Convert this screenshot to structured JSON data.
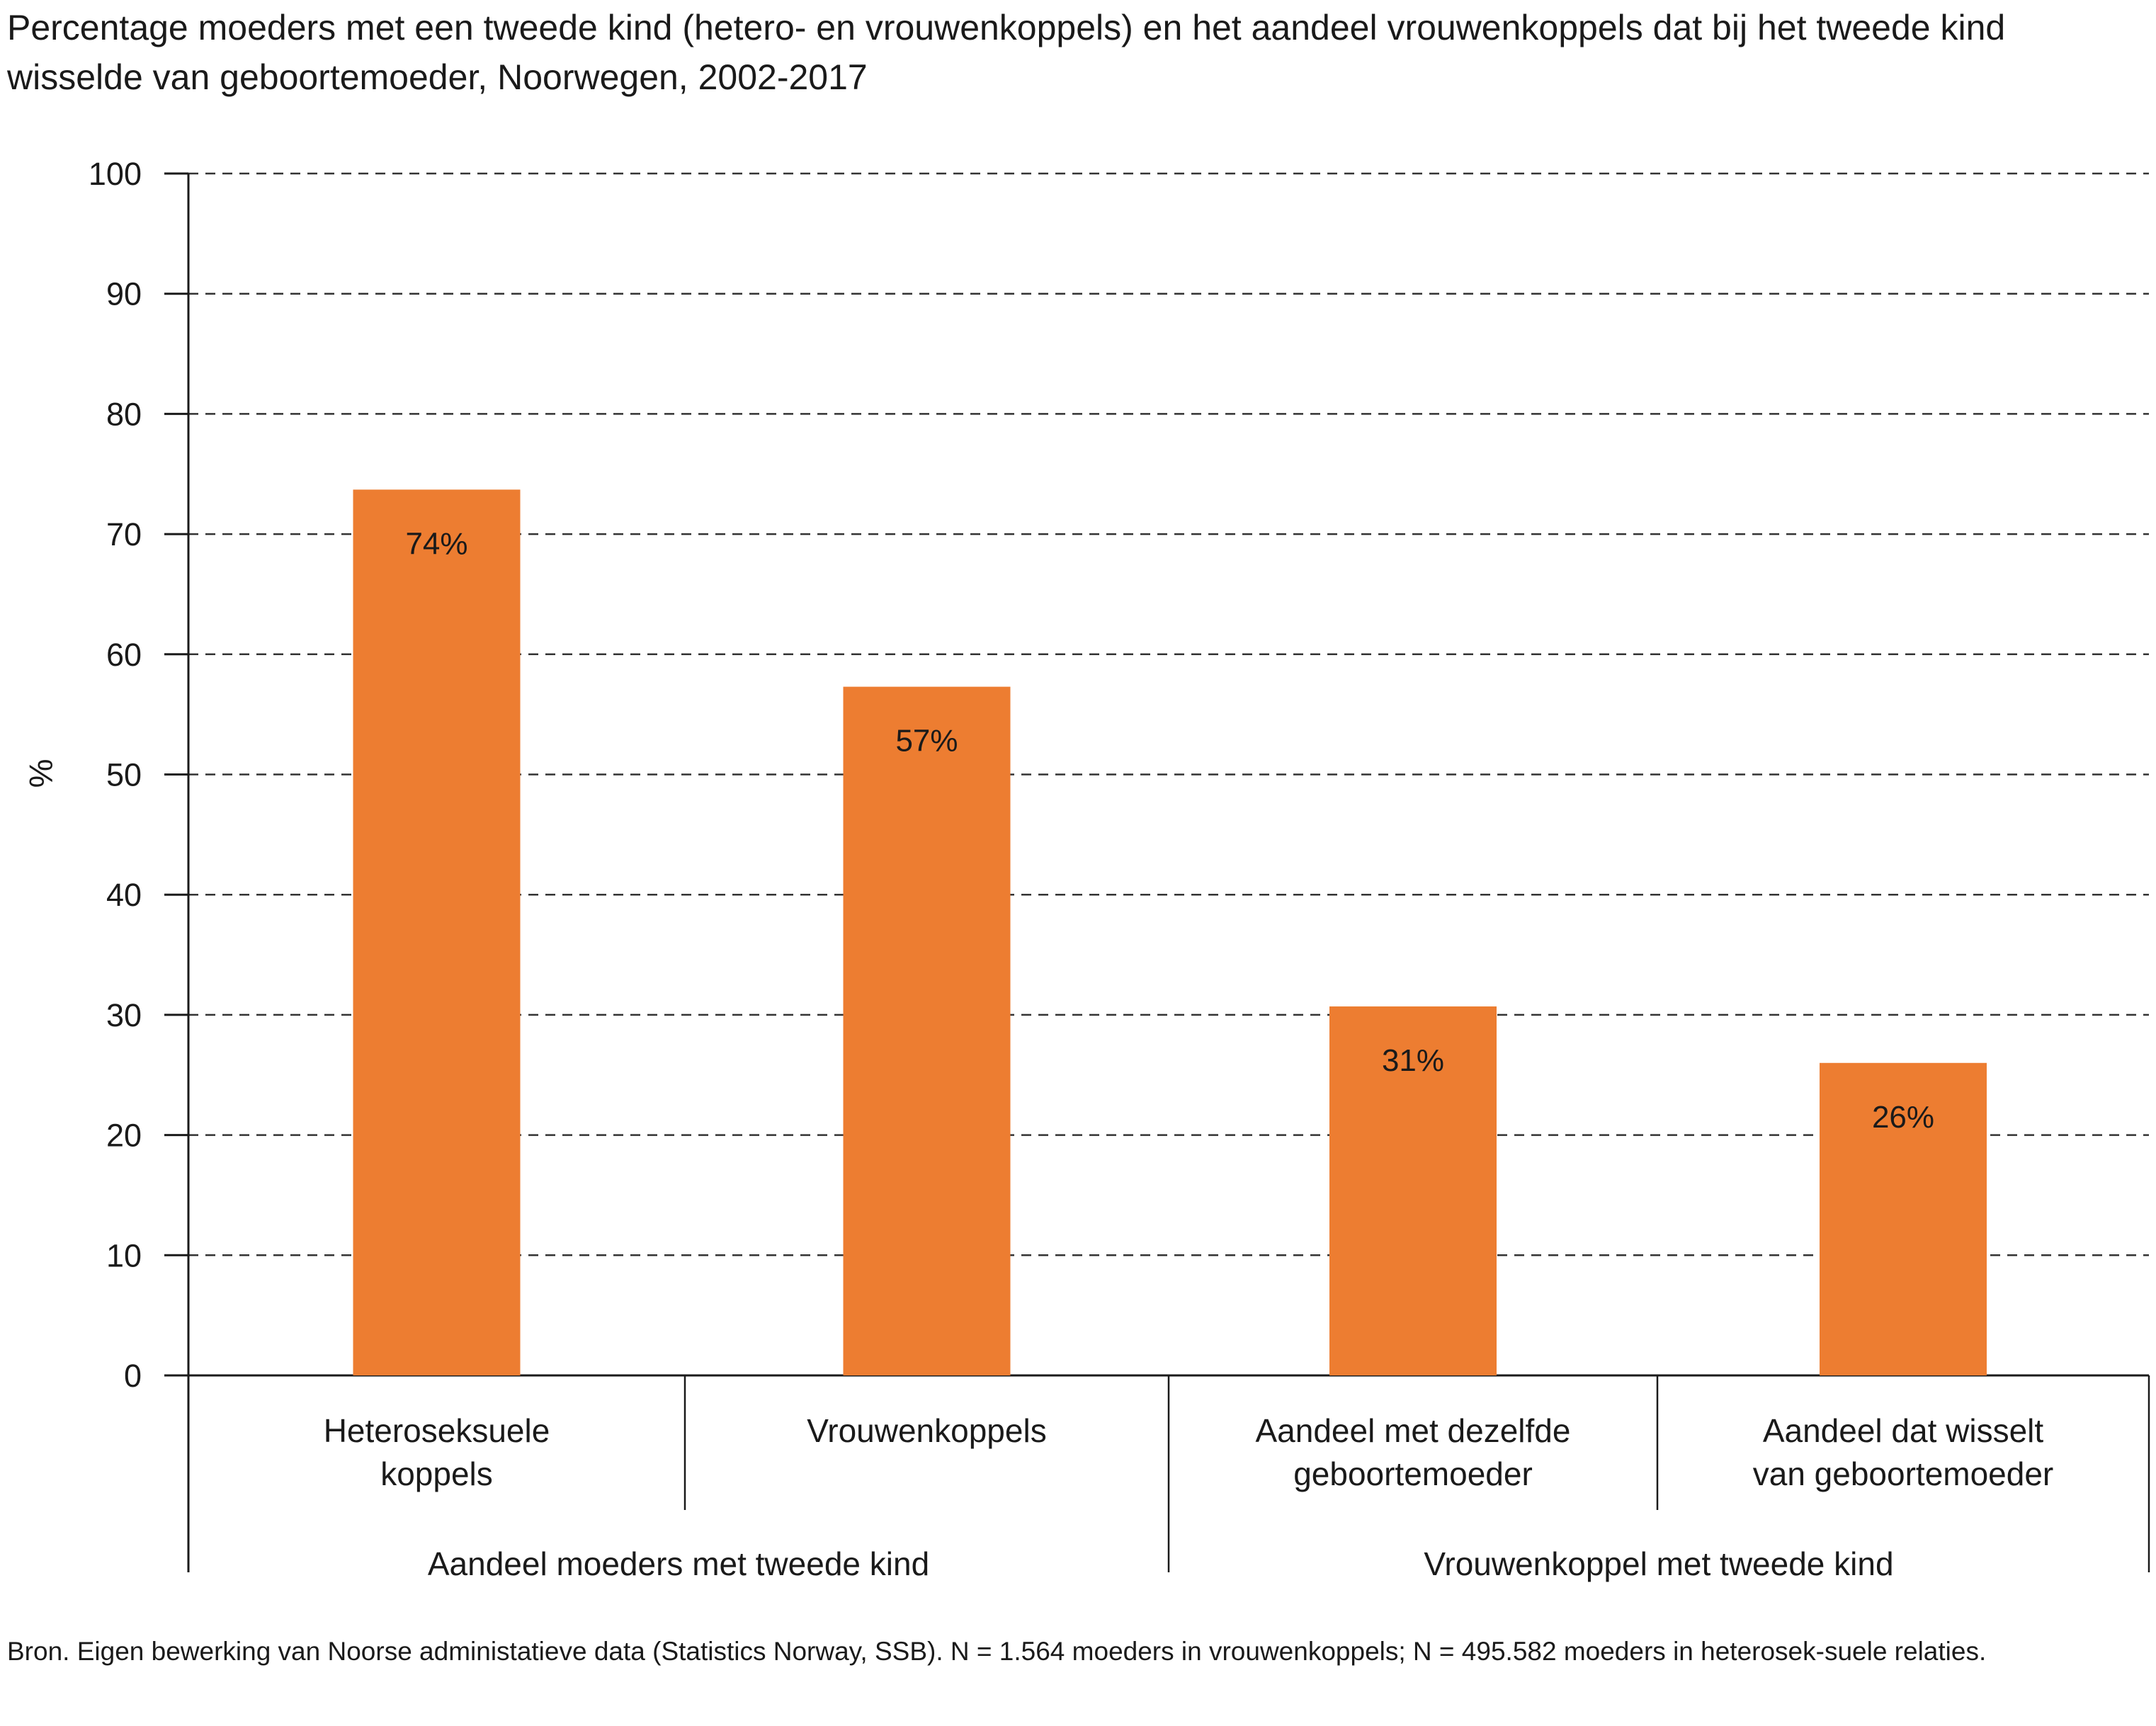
{
  "title": "Percentage moeders met een tweede kind (hetero- en vrouwenkoppels) en het aandeel vrouwenkoppels dat bij het tweede kind wisselde van geboortemoeder, Noorwegen, 2002-2017",
  "source": "Bron. Eigen bewerking van Noorse administatieve data (Statistics Norway, SSB). N = 1.564 moeders in vrouwenkoppels; N = 495.582 moeders in heterosek-suele relaties.",
  "colors": {
    "bar": "#ED7D31",
    "grid": "#333333",
    "axis": "#1a1a1a"
  },
  "chart_data": {
    "type": "bar",
    "title": "Percentage moeders met een tweede kind (hetero- en vrouwenkoppels) en het aandeel vrouwenkoppels dat bij het tweede kind wisselde van geboortemoeder, Noorwegen, 2002-2017",
    "xlabel": "",
    "ylabel": "%",
    "ylim": [
      0,
      100
    ],
    "yticks": [
      "0",
      "10",
      "20",
      "30",
      "40",
      "50",
      "60",
      "70",
      "80",
      "90",
      "100"
    ],
    "grid": "dashed horizontal",
    "categories": [
      [
        "Heteroseksuele",
        "koppels"
      ],
      [
        "Vrouwenkoppels"
      ],
      [
        "Aandeel met dezelfde",
        "geboortemoeder"
      ],
      [
        "Aandeel dat wisselt",
        "van geboortemoeder"
      ]
    ],
    "values": [
      73.7,
      57.3,
      30.7,
      26.0
    ],
    "data_labels": [
      "74%",
      "57%",
      "31%",
      "26%"
    ],
    "groups": [
      {
        "label": "Aandeel moeders met tweede kind",
        "categories": [
          0,
          1
        ]
      },
      {
        "label": "Vrouwenkoppel met tweede kind",
        "categories": [
          2,
          3
        ]
      }
    ]
  }
}
